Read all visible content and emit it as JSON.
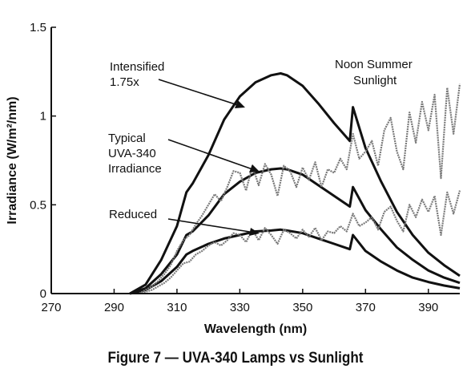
{
  "caption": "Figure 7 — UVA-340 Lamps vs Sunlight",
  "chart_data": {
    "type": "line",
    "xlabel": "Wavelength (nm)",
    "ylabel": "Irradiance (W/m²/nm)",
    "xlim": [
      270,
      400
    ],
    "ylim": [
      0,
      1.5
    ],
    "xticks": [
      "270",
      "290",
      "310",
      "330",
      "350",
      "370",
      "390"
    ],
    "yticks": [
      "0",
      "0.5",
      "1",
      "1.5"
    ],
    "grid": false,
    "annotations": {
      "intensified": [
        "Intensified",
        "1.75x"
      ],
      "typical": [
        "Typical",
        "UVA-340",
        "Irradiance"
      ],
      "reduced": [
        "Reduced"
      ],
      "sunlight": [
        "Noon Summer",
        "Sunlight"
      ]
    },
    "series": [
      {
        "color": "#111111",
        "style": "lamp",
        "x": [
          295,
          300,
          305,
          310,
          313,
          315,
          320,
          325,
          330,
          335,
          340,
          343,
          345,
          350,
          355,
          360,
          365,
          366,
          370,
          375,
          380,
          385,
          390,
          395,
          400
        ],
        "y": [
          0.0,
          0.02,
          0.07,
          0.15,
          0.22,
          0.24,
          0.28,
          0.31,
          0.33,
          0.35,
          0.355,
          0.36,
          0.355,
          0.34,
          0.31,
          0.28,
          0.25,
          0.33,
          0.24,
          0.18,
          0.13,
          0.09,
          0.065,
          0.045,
          0.03
        ]
      },
      {
        "color": "#111111",
        "style": "lamp",
        "x": [
          295,
          300,
          305,
          310,
          313,
          315,
          320,
          325,
          330,
          335,
          340,
          343,
          345,
          350,
          355,
          360,
          365,
          366,
          370,
          375,
          380,
          385,
          390,
          395,
          400
        ],
        "y": [
          0.0,
          0.03,
          0.11,
          0.22,
          0.33,
          0.35,
          0.44,
          0.56,
          0.63,
          0.68,
          0.7,
          0.705,
          0.7,
          0.67,
          0.61,
          0.55,
          0.49,
          0.6,
          0.47,
          0.36,
          0.26,
          0.19,
          0.13,
          0.09,
          0.06
        ]
      },
      {
        "color": "#111111",
        "style": "lamp",
        "x": [
          295,
          300,
          305,
          310,
          313,
          315,
          320,
          325,
          330,
          335,
          340,
          343,
          345,
          350,
          355,
          360,
          365,
          366,
          370,
          375,
          380,
          385,
          390,
          395,
          400
        ],
        "y": [
          0.0,
          0.05,
          0.19,
          0.38,
          0.57,
          0.62,
          0.78,
          0.98,
          1.11,
          1.19,
          1.23,
          1.24,
          1.23,
          1.17,
          1.07,
          0.96,
          0.86,
          1.05,
          0.82,
          0.63,
          0.46,
          0.33,
          0.23,
          0.16,
          0.1
        ]
      },
      {
        "color": "#7a7a7a",
        "style": "sun",
        "x": [
          298,
          300,
          302,
          304,
          306,
          308,
          310,
          312,
          314,
          316,
          318,
          320,
          322,
          324,
          326,
          328,
          330,
          332,
          334,
          336,
          338,
          340,
          342,
          344,
          346,
          348,
          350,
          352,
          354,
          356,
          358,
          360,
          362,
          364,
          366,
          368,
          370,
          372,
          374,
          376,
          378,
          380,
          382,
          384,
          386,
          388,
          390,
          392,
          394,
          396,
          398,
          400
        ],
        "y": [
          0.0,
          0.01,
          0.02,
          0.04,
          0.06,
          0.09,
          0.13,
          0.17,
          0.18,
          0.22,
          0.24,
          0.27,
          0.29,
          0.27,
          0.3,
          0.34,
          0.33,
          0.29,
          0.36,
          0.3,
          0.37,
          0.33,
          0.28,
          0.36,
          0.34,
          0.31,
          0.36,
          0.32,
          0.37,
          0.3,
          0.35,
          0.34,
          0.38,
          0.35,
          0.45,
          0.38,
          0.4,
          0.43,
          0.36,
          0.46,
          0.49,
          0.41,
          0.35,
          0.5,
          0.43,
          0.53,
          0.46,
          0.55,
          0.33,
          0.57,
          0.45,
          0.58
        ]
      },
      {
        "color": "#7a7a7a",
        "style": "sun",
        "x": [
          298,
          300,
          302,
          304,
          306,
          308,
          310,
          312,
          314,
          316,
          318,
          320,
          322,
          324,
          326,
          328,
          330,
          332,
          334,
          336,
          338,
          340,
          342,
          344,
          346,
          348,
          350,
          352,
          354,
          356,
          358,
          360,
          362,
          364,
          366,
          368,
          370,
          372,
          374,
          376,
          378,
          380,
          382,
          384,
          386,
          388,
          390,
          392,
          394,
          396,
          398,
          400
        ],
        "y": [
          0.0,
          0.02,
          0.04,
          0.07,
          0.11,
          0.16,
          0.24,
          0.3,
          0.33,
          0.39,
          0.44,
          0.5,
          0.56,
          0.52,
          0.6,
          0.69,
          0.68,
          0.58,
          0.72,
          0.61,
          0.73,
          0.67,
          0.55,
          0.72,
          0.69,
          0.6,
          0.71,
          0.64,
          0.74,
          0.6,
          0.7,
          0.68,
          0.76,
          0.7,
          0.9,
          0.76,
          0.8,
          0.86,
          0.72,
          0.92,
          0.99,
          0.8,
          0.7,
          1.02,
          0.85,
          1.08,
          0.92,
          1.12,
          0.65,
          1.16,
          0.9,
          1.18
        ]
      }
    ]
  }
}
